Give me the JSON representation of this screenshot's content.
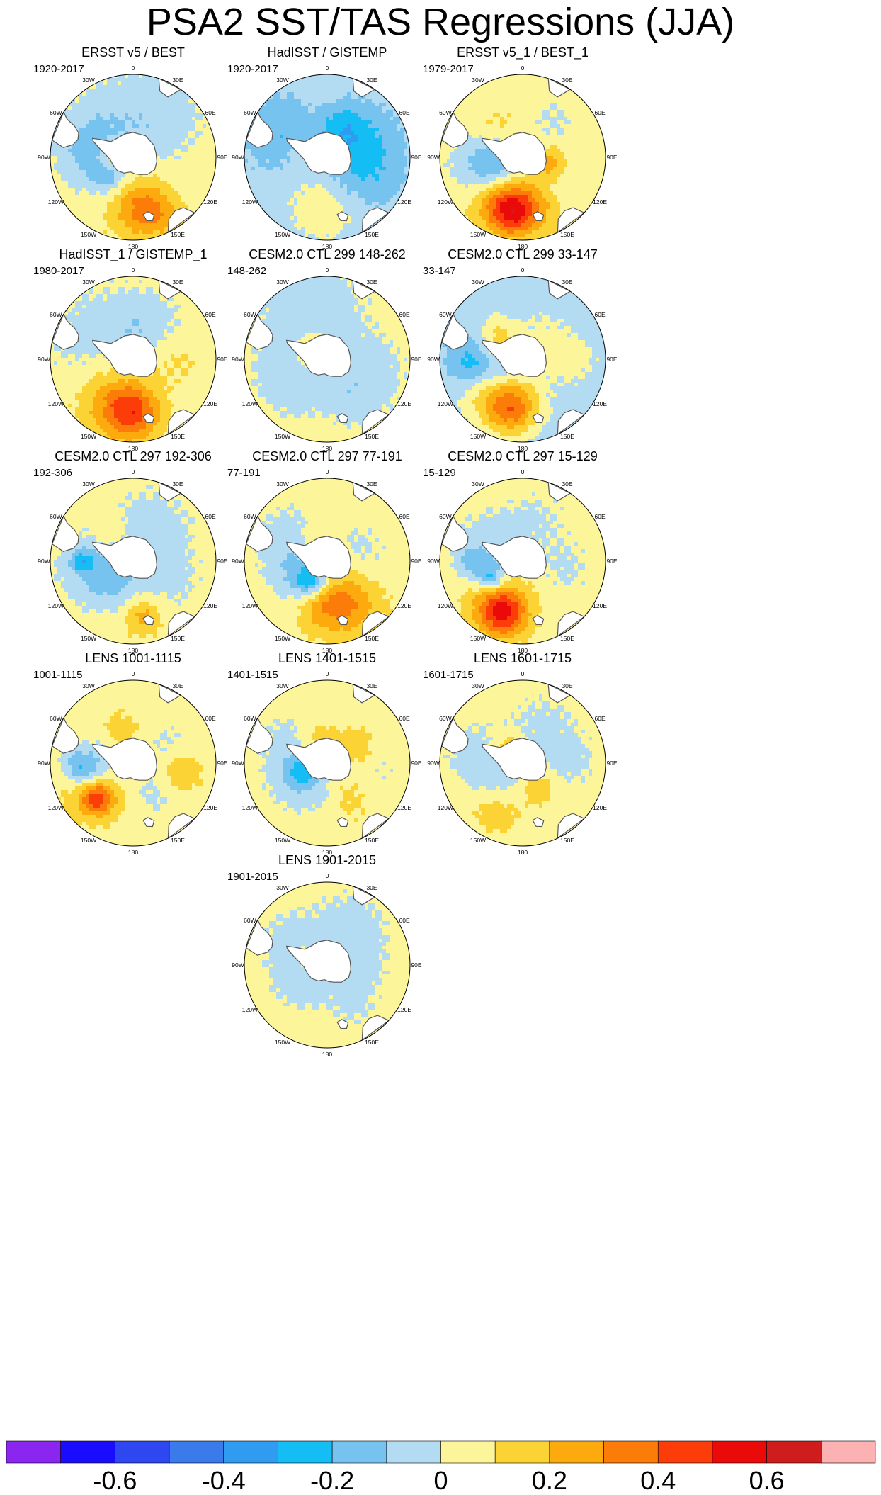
{
  "title": "PSA2 SST/TAS Regressions (JJA)",
  "chart_data": {
    "type": "heatmap",
    "projection": "south-polar-stereographic",
    "longitude_labels": [
      "0",
      "30E",
      "60E",
      "90E",
      "120E",
      "150E",
      "180",
      "150W",
      "120W",
      "90W",
      "60W",
      "30W"
    ],
    "panels": [
      {
        "title": "ERSST v5 / BEST",
        "period": "1920-2017",
        "pattern": 0
      },
      {
        "title": "HadISST / GISTEMP",
        "period": "1920-2017",
        "pattern": 1
      },
      {
        "title": "ERSST v5_1 / BEST_1",
        "period": "1979-2017",
        "pattern": 2
      },
      {
        "title": "HadISST_1 / GISTEMP_1",
        "period": "1980-2017",
        "pattern": 3
      },
      {
        "title": "CESM2.0 CTL 299 148-262",
        "period": "148-262",
        "pattern": 4
      },
      {
        "title": "CESM2.0 CTL 299 33-147",
        "period": "33-147",
        "pattern": 5
      },
      {
        "title": "CESM2.0 CTL 297 192-306",
        "period": "192-306",
        "pattern": 6
      },
      {
        "title": "CESM2.0 CTL 297 77-191",
        "period": "77-191",
        "pattern": 7
      },
      {
        "title": "CESM2.0 CTL 297 15-129",
        "period": "15-129",
        "pattern": 8
      },
      {
        "title": "LENS 1001-1115",
        "period": "1001-1115",
        "pattern": 9
      },
      {
        "title": "LENS 1401-1515",
        "period": "1401-1515",
        "pattern": 10
      },
      {
        "title": "LENS 1601-1715",
        "period": "1601-1715",
        "pattern": 11
      },
      {
        "title": "LENS 1901-2015",
        "period": "1901-2015",
        "pattern": 12
      }
    ],
    "colorbar": {
      "colors": [
        "#8b25f0",
        "#1a0dff",
        "#2e47f0",
        "#3a7aea",
        "#2f9cf2",
        "#15bdf5",
        "#76c3f0",
        "#b3dcf3",
        "#fdf59a",
        "#fbd334",
        "#fcaa0e",
        "#fc7c0a",
        "#fc3d09",
        "#ea0a0a",
        "#cf1d1d",
        "#fcb2b2"
      ],
      "boundaries": [
        -0.7,
        -0.6,
        -0.5,
        -0.4,
        -0.3,
        -0.2,
        -0.1,
        0,
        0.1,
        0.2,
        0.3,
        0.4,
        0.5,
        0.6,
        0.7
      ],
      "tick_labels": [
        "-0.6",
        "-0.4",
        "-0.2",
        "0",
        "0.2",
        "0.4",
        "0.6"
      ]
    },
    "patterns": [
      {
        "base": 0.05,
        "blobs": [
          [
            -95,
            48,
            16,
            -0.12
          ],
          [
            -60,
            55,
            22,
            -0.12
          ],
          [
            25,
            58,
            26,
            -0.12
          ],
          [
            160,
            70,
            14,
            0.22
          ],
          [
            180,
            58,
            16,
            0.15
          ],
          [
            -82,
            25,
            8,
            0.2
          ],
          [
            -130,
            40,
            8,
            -0.15
          ]
        ]
      },
      {
        "base": -0.06,
        "blobs": [
          [
            -60,
            55,
            20,
            -0.14
          ],
          [
            60,
            45,
            18,
            -0.13
          ],
          [
            110,
            48,
            20,
            -0.12
          ],
          [
            -80,
            25,
            10,
            0.12
          ],
          [
            180,
            68,
            16,
            0.12
          ],
          [
            20,
            40,
            12,
            -0.13
          ],
          [
            -10,
            55,
            14,
            0.05
          ],
          [
            -150,
            48,
            18,
            0.05
          ]
        ]
      },
      {
        "base": 0.05,
        "blobs": [
          [
            -100,
            55,
            16,
            -0.12
          ],
          [
            -110,
            32,
            14,
            -0.2
          ],
          [
            -155,
            58,
            16,
            0.25
          ],
          [
            -170,
            68,
            12,
            0.3
          ],
          [
            160,
            60,
            16,
            0.15
          ],
          [
            100,
            35,
            8,
            0.2
          ],
          [
            40,
            58,
            14,
            -0.06
          ],
          [
            130,
            62,
            14,
            -0.08
          ],
          [
            -40,
            45,
            12,
            0.08
          ]
        ]
      },
      {
        "base": 0.04,
        "blobs": [
          [
            -160,
            58,
            20,
            0.22
          ],
          [
            180,
            65,
            14,
            0.28
          ],
          [
            -60,
            55,
            24,
            -0.08
          ],
          [
            30,
            48,
            20,
            -0.06
          ],
          [
            0,
            42,
            14,
            -0.06
          ],
          [
            90,
            55,
            14,
            0.08
          ]
        ]
      },
      {
        "base": 0.05,
        "blobs": [
          [
            -20,
            60,
            30,
            -0.11
          ],
          [
            -120,
            48,
            20,
            -0.11
          ],
          [
            110,
            55,
            20,
            -0.09
          ],
          [
            -70,
            20,
            8,
            0.18
          ],
          [
            -50,
            22,
            6,
            0.18
          ],
          [
            150,
            60,
            14,
            -0.07
          ]
        ]
      },
      {
        "base": -0.06,
        "blobs": [
          [
            -95,
            62,
            12,
            -0.2
          ],
          [
            -145,
            55,
            18,
            0.22
          ],
          [
            -170,
            62,
            14,
            0.3
          ],
          [
            -60,
            30,
            10,
            0.14
          ],
          [
            -40,
            45,
            10,
            0.1
          ],
          [
            -120,
            30,
            10,
            -0.12
          ],
          [
            90,
            58,
            16,
            0.1
          ],
          [
            30,
            45,
            14,
            0.06
          ]
        ]
      },
      {
        "base": 0.05,
        "blobs": [
          [
            -95,
            55,
            18,
            -0.1
          ],
          [
            -130,
            35,
            16,
            -0.15
          ],
          [
            -90,
            62,
            6,
            -0.2
          ],
          [
            30,
            45,
            24,
            -0.09
          ],
          [
            120,
            52,
            18,
            -0.06
          ],
          [
            170,
            68,
            10,
            0.2
          ],
          [
            -40,
            42,
            8,
            0.1
          ]
        ]
      },
      {
        "base": 0.05,
        "blobs": [
          [
            -120,
            35,
            16,
            -0.16
          ],
          [
            -140,
            30,
            8,
            -0.26
          ],
          [
            -60,
            55,
            18,
            -0.1
          ],
          [
            150,
            55,
            18,
            0.22
          ],
          [
            -175,
            55,
            14,
            0.18
          ],
          [
            -30,
            25,
            10,
            0.12
          ],
          [
            60,
            40,
            14,
            -0.06
          ],
          [
            100,
            60,
            14,
            -0.05
          ]
        ]
      },
      {
        "base": 0.05,
        "blobs": [
          [
            -150,
            58,
            16,
            0.25
          ],
          [
            -160,
            68,
            12,
            0.3
          ],
          [
            -110,
            40,
            12,
            -0.15
          ],
          [
            -120,
            45,
            6,
            -0.2
          ],
          [
            -60,
            52,
            18,
            -0.08
          ],
          [
            100,
            55,
            14,
            -0.06
          ],
          [
            20,
            50,
            20,
            -0.06
          ],
          [
            -90,
            62,
            8,
            -0.14
          ]
        ]
      },
      {
        "base": 0.05,
        "blobs": [
          [
            -95,
            63,
            10,
            -0.24
          ],
          [
            -105,
            45,
            14,
            -0.16
          ],
          [
            -125,
            58,
            16,
            0.22
          ],
          [
            -135,
            60,
            8,
            0.3
          ],
          [
            -30,
            40,
            12,
            0.14
          ],
          [
            60,
            45,
            14,
            -0.06
          ],
          [
            100,
            60,
            10,
            0.15
          ],
          [
            150,
            45,
            12,
            -0.07
          ],
          [
            -50,
            45,
            10,
            -0.08
          ]
        ]
      },
      {
        "base": 0.05,
        "blobs": [
          [
            -120,
            40,
            16,
            -0.13
          ],
          [
            -110,
            30,
            8,
            -0.2
          ],
          [
            -20,
            30,
            10,
            0.13
          ],
          [
            60,
            40,
            10,
            0.14
          ],
          [
            150,
            45,
            14,
            0.1
          ],
          [
            -60,
            52,
            18,
            -0.07
          ],
          [
            100,
            55,
            14,
            -0.06
          ],
          [
            180,
            40,
            10,
            -0.06
          ]
        ]
      },
      {
        "base": 0.05,
        "blobs": [
          [
            -130,
            35,
            14,
            -0.14
          ],
          [
            -80,
            55,
            18,
            -0.09
          ],
          [
            30,
            50,
            22,
            -0.07
          ],
          [
            -60,
            25,
            10,
            0.12
          ],
          [
            -40,
            20,
            6,
            0.2
          ],
          [
            150,
            35,
            8,
            0.15
          ],
          [
            -150,
            60,
            14,
            0.14
          ],
          [
            90,
            60,
            14,
            -0.06
          ]
        ]
      },
      {
        "base": 0.05,
        "blobs": [
          [
            -120,
            40,
            14,
            -0.1
          ],
          [
            -60,
            55,
            18,
            -0.08
          ],
          [
            30,
            55,
            22,
            -0.08
          ],
          [
            90,
            40,
            16,
            -0.06
          ],
          [
            150,
            55,
            16,
            -0.06
          ],
          [
            -70,
            25,
            6,
            0.12
          ]
        ]
      }
    ]
  }
}
